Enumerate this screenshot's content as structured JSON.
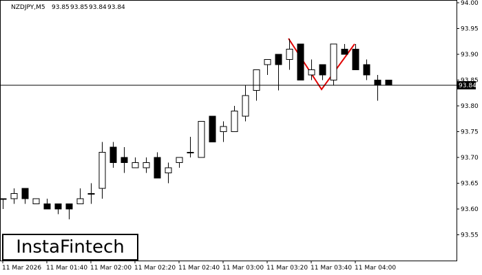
{
  "chart_data": {
    "type": "candlestick",
    "symbol": "NZDJPY,M5",
    "header_quote": [
      93.85,
      93.85,
      93.84,
      93.84
    ],
    "categories": [
      "11 Mar 2026",
      null,
      null,
      null,
      "11 Mar 01:40",
      null,
      null,
      null,
      "11 Mar 02:00",
      null,
      null,
      null,
      "11 Mar 02:20",
      null,
      null,
      null,
      "11 Mar 02:40",
      null,
      null,
      null,
      "11 Mar 03:00",
      null,
      null,
      null,
      "11 Mar 03:20",
      null,
      null,
      null,
      "11 Mar 03:40",
      null,
      null,
      null,
      "11 Mar 04:00",
      null,
      null,
      null
    ],
    "open": [
      93.62,
      93.62,
      93.64,
      93.61,
      93.61,
      93.61,
      93.61,
      93.61,
      93.63,
      93.64,
      93.72,
      93.7,
      93.68,
      93.68,
      93.7,
      93.67,
      93.69,
      93.71,
      93.7,
      93.78,
      93.75,
      93.75,
      93.78,
      93.83,
      93.88,
      93.9,
      93.89,
      93.92,
      93.86,
      93.88,
      93.85,
      93.91,
      93.91,
      93.88,
      93.85,
      93.85
    ],
    "high": [
      93.62,
      93.64,
      93.64,
      93.62,
      93.62,
      93.61,
      93.61,
      93.64,
      93.65,
      93.73,
      93.73,
      93.72,
      93.7,
      93.7,
      93.71,
      93.69,
      93.7,
      93.74,
      93.77,
      93.78,
      93.77,
      93.8,
      93.84,
      93.87,
      93.89,
      93.9,
      93.93,
      93.92,
      93.89,
      93.88,
      93.92,
      93.92,
      93.92,
      93.89,
      93.86,
      93.85
    ],
    "low": [
      93.6,
      93.61,
      93.61,
      93.61,
      93.6,
      93.59,
      93.58,
      93.61,
      93.61,
      93.62,
      93.68,
      93.67,
      93.68,
      93.67,
      93.66,
      93.65,
      93.68,
      93.7,
      93.7,
      93.73,
      93.73,
      93.75,
      93.77,
      93.81,
      93.86,
      93.83,
      93.87,
      93.85,
      93.85,
      93.85,
      93.84,
      93.9,
      93.87,
      93.85,
      93.81,
      93.84
    ],
    "close": [
      93.62,
      93.63,
      93.62,
      93.62,
      93.6,
      93.6,
      93.6,
      93.62,
      93.63,
      93.71,
      93.69,
      93.69,
      93.69,
      93.69,
      93.66,
      93.68,
      93.7,
      93.71,
      93.77,
      93.73,
      93.76,
      93.79,
      93.82,
      93.87,
      93.89,
      93.88,
      93.91,
      93.85,
      93.87,
      93.86,
      93.92,
      93.9,
      93.87,
      93.86,
      93.84,
      93.84
    ],
    "last_price": 93.84,
    "ylim": [
      93.5,
      94.0
    ],
    "yticks": [
      {
        "value": 94.0,
        "label": "94.00"
      },
      93.95,
      {
        "value": 93.9,
        "label": "93.90"
      },
      93.85,
      {
        "value": 93.8,
        "label": "93.80"
      },
      93.75,
      {
        "value": 93.7,
        "label": "93.70"
      },
      93.65,
      {
        "value": 93.6,
        "label": "93.60"
      },
      93.55
    ],
    "watermark": "InstaFintech"
  }
}
